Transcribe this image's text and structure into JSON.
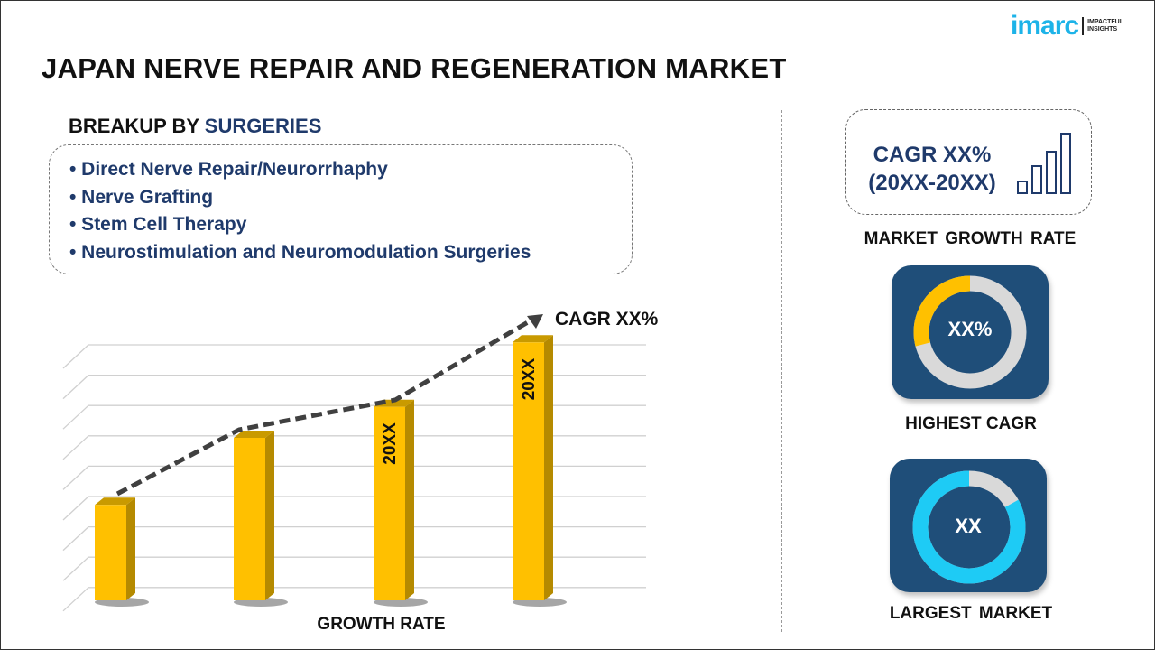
{
  "header": {
    "title": "JAPAN NERVE REPAIR AND REGENERATION MARKET",
    "logo_word": "imarc",
    "logo_tagline": [
      "IMPACTFUL",
      "INSIGHTS"
    ]
  },
  "breakup": {
    "prefix": "BREAKUP BY ",
    "highlight": "SURGERIES",
    "items": [
      "• Direct Nerve Repair/Neurorrhaphy",
      "• Nerve Grafting",
      "• Stem Cell Therapy",
      "• Neurostimulation and Neuromodulation Surgeries"
    ]
  },
  "growth_box": {
    "cagr": "CAGR XX%",
    "period": "(20XX-20XX)",
    "label": "MARKET GROWTH RATE",
    "icon": "bar-growth-icon"
  },
  "highest_cagr": {
    "value": "XX%",
    "label": "HIGHEST CAGR",
    "fill": 0.29,
    "color": "#ffc000"
  },
  "largest_market": {
    "value": "XX",
    "label": "LARGEST MARKET",
    "fill": 0.83,
    "color": "#1ecbf5"
  },
  "colors": {
    "navy": "#1f3a6b",
    "tile": "#1f4e79",
    "bar": "#ffc000",
    "bar_side": "#b58a00",
    "logo": "#1db3e8"
  },
  "chart_data": {
    "type": "bar",
    "categories": [
      "",
      "",
      "",
      ""
    ],
    "values": [
      0.37,
      0.63,
      0.75,
      1.0
    ],
    "bar_labels": [
      "",
      "",
      "20XX",
      "20XX"
    ],
    "trend_annotation": "CAGR XX%",
    "xlabel": "GROWTH RATE",
    "ylabel": "",
    "ylim": [
      0,
      1.05
    ],
    "grid": true
  }
}
